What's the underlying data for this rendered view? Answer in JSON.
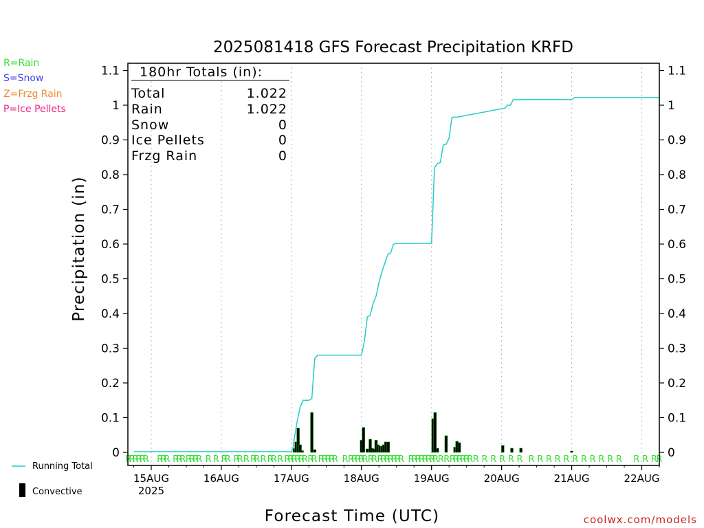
{
  "chart_data": {
    "type": "bar",
    "title": "2025081418 GFS Forecast Precipitation KRFD",
    "ylabel": "Precipitation (in)",
    "xlabel": "Forecast Time (UTC)",
    "ylim": [
      0,
      1.12
    ],
    "xlim_hours": [
      -2,
      180
    ],
    "y_ticks": [
      0,
      0.1,
      0.2,
      0.3,
      0.4,
      0.5,
      0.6,
      0.7,
      0.8,
      0.9,
      1,
      1.1
    ],
    "y_tick_labels": [
      "0",
      "0.1",
      "0.2",
      "0.3",
      "0.4",
      "0.5",
      "0.6",
      "0.7",
      "0.8",
      "0.9",
      "1",
      "1.1"
    ],
    "x_ticks": [
      {
        "hour": 6,
        "label": "15AUG",
        "sub": "2025"
      },
      {
        "hour": 30,
        "label": "16AUG",
        "sub": ""
      },
      {
        "hour": 54,
        "label": "17AUG",
        "sub": ""
      },
      {
        "hour": 78,
        "label": "18AUG",
        "sub": ""
      },
      {
        "hour": 102,
        "label": "19AUG",
        "sub": ""
      },
      {
        "hour": 126,
        "label": "20AUG",
        "sub": ""
      },
      {
        "hour": 150,
        "label": "21AUG",
        "sub": ""
      },
      {
        "hour": 174,
        "label": "22AUG",
        "sub": ""
      }
    ],
    "legend_types": [
      {
        "label": "R=Rain",
        "color": "#33dd33"
      },
      {
        "label": "S=Snow",
        "color": "#4444ee"
      },
      {
        "label": "Z=Frzg Rain",
        "color": "#ee8833"
      },
      {
        "label": "P=Ice Pellets",
        "color": "#ee2288"
      }
    ],
    "legend_series": [
      {
        "label": "Running Total",
        "color": "#22cccc"
      },
      {
        "label": "Convective",
        "color": "#000000"
      }
    ],
    "totals_box": {
      "header": "180hr Totals (in):",
      "rows": [
        {
          "label": "Total",
          "value": "1.022"
        },
        {
          "label": "Rain",
          "value": "1.022"
        },
        {
          "label": "Snow",
          "value": "0"
        },
        {
          "label": "Ice Pellets",
          "value": "0"
        },
        {
          "label": "Frzg Rain",
          "value": "0"
        }
      ]
    },
    "running_total": {
      "hours": [
        0,
        54,
        54.5,
        55,
        56,
        57,
        58,
        59,
        60,
        61,
        62,
        63,
        78,
        79,
        80,
        81,
        82,
        83,
        84,
        85,
        86,
        87,
        88,
        89,
        90,
        91,
        92,
        102,
        103,
        104,
        105,
        106,
        107,
        108,
        109,
        110,
        111,
        126,
        127,
        128,
        129,
        130,
        150,
        151,
        180
      ],
      "values": [
        0.002,
        0.002,
        0.01,
        0.04,
        0.09,
        0.13,
        0.15,
        0.15,
        0.15,
        0.155,
        0.27,
        0.28,
        0.28,
        0.32,
        0.39,
        0.395,
        0.43,
        0.45,
        0.49,
        0.52,
        0.545,
        0.57,
        0.575,
        0.6,
        0.602,
        0.602,
        0.602,
        0.602,
        0.82,
        0.832,
        0.835,
        0.885,
        0.888,
        0.905,
        0.965,
        0.966,
        0.966,
        0.99,
        0.99,
        1.0,
        1.0,
        1.016,
        1.016,
        1.022,
        1.022
      ],
      "color": "#22cccc"
    },
    "bars": {
      "hours": [
        55,
        55.6,
        56.3,
        57,
        57.7,
        61,
        62,
        78,
        78.7,
        80,
        81,
        81.7,
        82.3,
        83,
        83.7,
        84.3,
        85,
        85.6,
        86.3,
        87.2,
        102.5,
        103.2,
        104,
        107,
        110,
        110.7,
        111.5,
        126.4,
        129.5,
        132.6,
        150
      ],
      "values": [
        0.012,
        0.03,
        0.07,
        0.022,
        0.005,
        0.115,
        0.008,
        0.035,
        0.072,
        0.01,
        0.038,
        0.012,
        0.01,
        0.035,
        0.022,
        0.018,
        0.018,
        0.022,
        0.03,
        0.03,
        0.097,
        0.115,
        0.012,
        0.048,
        0.015,
        0.032,
        0.028,
        0.02,
        0.012,
        0.012,
        0.004
      ],
      "color": "#000000",
      "fill": "#22aa22"
    },
    "type_code_marks": {
      "code": "R",
      "color": "#33dd33",
      "hours": [
        -1.8,
        -0.6,
        0.6,
        1.8,
        3,
        4.2,
        9,
        10.2,
        11.4,
        14.4,
        15.6,
        16.8,
        18.8,
        20,
        21.2,
        22.4,
        25.6,
        28.2,
        31,
        32.2,
        35.2,
        36.4,
        38.6,
        41,
        42.2,
        44.4,
        46.8,
        48,
        50.2,
        52.6,
        53.8,
        55,
        56.2,
        57.4,
        58.6,
        60.6,
        61.8,
        64.2,
        65.4,
        66.6,
        67.8,
        69,
        72.4,
        74.4,
        75.6,
        76.8,
        78,
        79.2,
        81.2,
        82.4,
        84.4,
        85.6,
        86.8,
        88,
        89.2,
        90.4,
        91.6,
        95,
        96.2,
        97.4,
        98.6,
        99.8,
        101,
        102.2,
        103.4,
        105.2,
        107.2,
        109.2,
        110.4,
        111.6,
        112.8,
        114,
        115.2,
        117.2,
        120.2,
        123.2,
        126.2,
        129.2,
        132.2,
        136.2,
        139.2,
        142.2,
        145.2,
        148.2,
        151.2,
        154.2,
        157.2,
        160.2,
        163.2,
        166.2,
        172.2,
        175.2,
        178.2,
        180
      ]
    },
    "credit": "coolwx.com/models"
  }
}
